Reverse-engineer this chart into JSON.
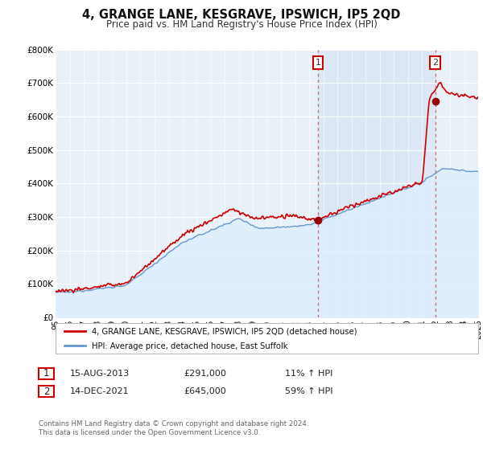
{
  "title": "4, GRANGE LANE, KESGRAVE, IPSWICH, IP5 2QD",
  "subtitle": "Price paid vs. HM Land Registry's House Price Index (HPI)",
  "ylim": [
    0,
    800000
  ],
  "yticks": [
    0,
    100000,
    200000,
    300000,
    400000,
    500000,
    600000,
    700000,
    800000
  ],
  "ytick_labels": [
    "£0",
    "£100K",
    "£200K",
    "£300K",
    "£400K",
    "£500K",
    "£600K",
    "£700K",
    "£800K"
  ],
  "x_start_year": 1995,
  "x_end_year": 2025,
  "hpi_color": "#6699cc",
  "hpi_fill_color": "#ddeeff",
  "price_color": "#cc0000",
  "marker_color": "#990000",
  "bg_color": "#e8f0f8",
  "grid_color": "#ffffff",
  "transaction1_date": 2013.62,
  "transaction1_price": 291000,
  "transaction2_date": 2021.95,
  "transaction2_price": 645000,
  "label1_date": "15-AUG-2013",
  "label1_price": "£291,000",
  "label1_hpi": "11% ↑ HPI",
  "label2_date": "14-DEC-2021",
  "label2_price": "£645,000",
  "label2_hpi": "59% ↑ HPI",
  "legend_line1": "4, GRANGE LANE, KESGRAVE, IPSWICH, IP5 2QD (detached house)",
  "legend_line2": "HPI: Average price, detached house, East Suffolk",
  "footer1": "Contains HM Land Registry data © Crown copyright and database right 2024.",
  "footer2": "This data is licensed under the Open Government Licence v3.0."
}
